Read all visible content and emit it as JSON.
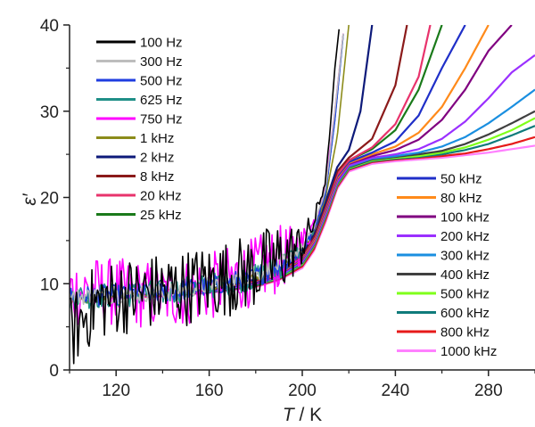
{
  "chart_data": {
    "type": "line",
    "xlabel_italic": "T",
    "xlabel_rest": " / K",
    "ylabel": "ε′",
    "xlim": [
      100,
      300
    ],
    "ylim": [
      0,
      40
    ],
    "xticks": [
      120,
      160,
      200,
      240,
      280
    ],
    "yticks": [
      0,
      10,
      20,
      30,
      40
    ],
    "grid": false,
    "legend_placement": [
      "upper-left",
      "lower-right"
    ],
    "series": [
      {
        "name": "100 Hz",
        "color": "#000000",
        "x": [
          100,
          110,
          120,
          130,
          140,
          150,
          160,
          170,
          180,
          190,
          200,
          205,
          210,
          212,
          214,
          216
        ],
        "y": [
          4.0,
          7.5,
          8.5,
          8.8,
          9.2,
          9.6,
          10.2,
          10.8,
          11.5,
          12.8,
          14.5,
          17.0,
          22.0,
          28.0,
          35.0,
          40.0
        ],
        "noise_amp": 4.5
      },
      {
        "name": "300 Hz",
        "color": "#bdbdbd",
        "x": [
          100,
          120,
          140,
          160,
          180,
          190,
          200,
          205,
          210,
          214,
          218
        ],
        "y": [
          8.5,
          8.7,
          9.0,
          9.8,
          11.0,
          12.2,
          14.2,
          16.5,
          21.0,
          30.0,
          40.0
        ],
        "noise_amp": 1.0
      },
      {
        "name": "500 Hz",
        "color": "#1f3de0",
        "x": [
          100,
          120,
          140,
          160,
          180,
          190,
          200,
          205,
          210,
          214,
          218
        ],
        "y": [
          8.5,
          8.7,
          9.0,
          9.7,
          10.8,
          12.0,
          14.0,
          16.2,
          20.5,
          29.0,
          40.0
        ],
        "noise_amp": 1.2
      },
      {
        "name": "625 Hz",
        "color": "#1f8f87",
        "x": [
          100,
          120,
          140,
          160,
          180,
          190,
          200,
          205,
          210,
          214,
          218
        ],
        "y": [
          8.5,
          8.7,
          9.0,
          9.7,
          10.8,
          12.0,
          14.0,
          16.2,
          20.5,
          29.0,
          40.0
        ],
        "noise_amp": 1.5
      },
      {
        "name": "750 Hz",
        "color": "#ff00ff",
        "x": [
          100,
          110,
          120,
          130,
          140,
          150,
          160,
          170,
          180,
          190,
          200,
          205,
          210,
          214,
          218
        ],
        "y": [
          9.0,
          9.2,
          9.0,
          8.8,
          8.6,
          9.0,
          9.6,
          10.5,
          11.5,
          12.8,
          14.5,
          17.0,
          21.5,
          30.0,
          40.0
        ],
        "noise_amp": 4.0
      },
      {
        "name": "1 kHz",
        "color": "#8c8c1a",
        "x": [
          100,
          120,
          140,
          160,
          180,
          190,
          200,
          205,
          210,
          215,
          220
        ],
        "y": [
          7.8,
          8.5,
          8.9,
          9.6,
          10.7,
          11.8,
          13.8,
          16.0,
          20.0,
          27.0,
          40.0
        ],
        "noise_amp": 0.5
      },
      {
        "name": "2 kHz",
        "color": "#0d1a7a",
        "x": [
          100,
          120,
          140,
          160,
          180,
          190,
          200,
          205,
          210,
          215,
          220,
          225,
          230
        ],
        "y": [
          8.3,
          8.5,
          8.8,
          9.4,
          10.5,
          11.5,
          13.5,
          15.8,
          19.5,
          23.5,
          25.5,
          30.0,
          40.0
        ],
        "noise_amp": 0
      },
      {
        "name": "8 kHz",
        "color": "#8b1a1a",
        "x": [
          100,
          120,
          140,
          160,
          180,
          190,
          200,
          205,
          210,
          215,
          220,
          230,
          240,
          245
        ],
        "y": [
          8.3,
          8.5,
          8.8,
          9.3,
          10.4,
          11.4,
          13.3,
          15.5,
          19.2,
          23.0,
          24.6,
          26.8,
          33.0,
          40.0
        ],
        "noise_amp": 0
      },
      {
        "name": "20 kHz",
        "color": "#e8336c",
        "x": [
          100,
          120,
          140,
          160,
          180,
          190,
          200,
          205,
          210,
          215,
          220,
          230,
          240,
          250,
          255
        ],
        "y": [
          8.3,
          8.5,
          8.8,
          9.3,
          10.3,
          11.3,
          13.1,
          15.3,
          18.9,
          22.6,
          24.3,
          25.8,
          28.5,
          34.0,
          40.0
        ],
        "noise_amp": 0
      },
      {
        "name": "25 kHz",
        "color": "#1a7a1a",
        "x": [
          100,
          120,
          140,
          160,
          180,
          190,
          200,
          205,
          210,
          215,
          220,
          230,
          240,
          250,
          260
        ],
        "y": [
          8.3,
          8.5,
          8.8,
          9.3,
          10.3,
          11.3,
          13.1,
          15.3,
          18.9,
          22.6,
          24.3,
          25.6,
          27.8,
          32.5,
          40.0
        ],
        "noise_amp": 0
      },
      {
        "name": "50 kHz",
        "color": "#1f2fc8",
        "x": [
          100,
          120,
          140,
          160,
          180,
          190,
          200,
          205,
          210,
          215,
          220,
          230,
          240,
          250,
          260,
          270
        ],
        "y": [
          8.3,
          8.5,
          8.8,
          9.2,
          10.2,
          11.2,
          13.0,
          15.2,
          18.7,
          22.4,
          24.1,
          25.2,
          26.5,
          29.5,
          35.0,
          40.0
        ],
        "noise_amp": 0
      },
      {
        "name": "80 kHz",
        "color": "#ff8a1a",
        "x": [
          100,
          120,
          140,
          160,
          180,
          190,
          200,
          205,
          210,
          215,
          220,
          230,
          240,
          250,
          260,
          270,
          280
        ],
        "y": [
          8.3,
          8.5,
          8.8,
          9.2,
          10.2,
          11.1,
          12.9,
          15.0,
          18.5,
          22.2,
          24.0,
          25.0,
          25.9,
          27.5,
          30.5,
          35.0,
          40.0
        ],
        "noise_amp": 0
      },
      {
        "name": "100 kHz",
        "color": "#800080",
        "x": [
          100,
          120,
          140,
          160,
          180,
          190,
          200,
          205,
          210,
          215,
          220,
          230,
          240,
          250,
          260,
          270,
          280,
          290
        ],
        "y": [
          8.3,
          8.5,
          8.8,
          9.2,
          10.1,
          11.0,
          12.8,
          14.9,
          18.4,
          22.1,
          23.9,
          24.8,
          25.5,
          26.7,
          29.0,
          32.5,
          37.0,
          40.0
        ],
        "noise_amp": 0
      },
      {
        "name": "200 kHz",
        "color": "#9b30ff",
        "x": [
          100,
          120,
          140,
          160,
          180,
          190,
          200,
          205,
          210,
          215,
          220,
          230,
          240,
          250,
          260,
          270,
          280,
          290,
          300
        ],
        "y": [
          8.3,
          8.5,
          8.7,
          9.1,
          10.0,
          10.9,
          12.6,
          14.7,
          18.1,
          21.8,
          23.7,
          24.6,
          25.0,
          25.6,
          26.8,
          28.8,
          31.5,
          34.5,
          36.5
        ],
        "noise_amp": 0
      },
      {
        "name": "300 kHz",
        "color": "#1a8fe0",
        "x": [
          100,
          120,
          140,
          160,
          180,
          190,
          200,
          205,
          210,
          215,
          220,
          230,
          240,
          250,
          260,
          270,
          280,
          290,
          300
        ],
        "y": [
          8.3,
          8.5,
          8.7,
          9.1,
          10.0,
          10.8,
          12.5,
          14.6,
          18.0,
          21.7,
          23.6,
          24.5,
          24.8,
          25.2,
          25.9,
          27.0,
          28.6,
          30.5,
          32.5
        ],
        "noise_amp": 0
      },
      {
        "name": "400 kHz",
        "color": "#404040",
        "x": [
          100,
          120,
          140,
          160,
          180,
          190,
          200,
          205,
          210,
          215,
          220,
          230,
          240,
          250,
          260,
          270,
          280,
          290,
          300
        ],
        "y": [
          8.3,
          8.5,
          8.7,
          9.1,
          9.9,
          10.8,
          12.4,
          14.5,
          17.9,
          21.6,
          23.5,
          24.4,
          24.7,
          25.0,
          25.4,
          26.2,
          27.3,
          28.6,
          30.0
        ],
        "noise_amp": 0
      },
      {
        "name": "500 kHz",
        "color": "#7fff1a",
        "x": [
          100,
          120,
          140,
          160,
          180,
          190,
          200,
          205,
          210,
          215,
          220,
          230,
          240,
          250,
          260,
          270,
          280,
          290,
          300
        ],
        "y": [
          8.3,
          8.5,
          8.7,
          9.1,
          9.9,
          10.7,
          12.3,
          14.4,
          17.8,
          21.5,
          23.4,
          24.3,
          24.6,
          24.8,
          25.2,
          25.8,
          26.7,
          27.8,
          29.2
        ],
        "noise_amp": 0
      },
      {
        "name": "600 kHz",
        "color": "#0f7b7b",
        "x": [
          100,
          120,
          140,
          160,
          180,
          190,
          200,
          205,
          210,
          215,
          220,
          230,
          240,
          250,
          260,
          270,
          280,
          290,
          300
        ],
        "y": [
          8.3,
          8.4,
          8.7,
          9.0,
          9.8,
          10.6,
          12.2,
          14.3,
          17.7,
          21.4,
          23.3,
          24.2,
          24.5,
          24.7,
          25.0,
          25.5,
          26.2,
          27.2,
          28.3
        ],
        "noise_amp": 0
      },
      {
        "name": "800 kHz",
        "color": "#e61a1a",
        "x": [
          100,
          120,
          140,
          160,
          180,
          190,
          200,
          205,
          210,
          215,
          220,
          230,
          240,
          250,
          260,
          270,
          280,
          290,
          300
        ],
        "y": [
          8.3,
          8.4,
          8.6,
          9.0,
          9.7,
          10.5,
          12.0,
          14.0,
          17.4,
          21.2,
          23.2,
          24.1,
          24.4,
          24.6,
          24.8,
          25.1,
          25.6,
          26.2,
          27.0
        ],
        "noise_amp": 0
      },
      {
        "name": "1000 kHz",
        "color": "#ff80ff",
        "x": [
          100,
          120,
          140,
          160,
          180,
          190,
          200,
          205,
          210,
          215,
          220,
          230,
          240,
          250,
          260,
          270,
          280,
          290,
          300
        ],
        "y": [
          8.2,
          8.3,
          8.5,
          8.9,
          9.6,
          10.4,
          11.8,
          13.8,
          17.1,
          21.0,
          23.0,
          23.9,
          24.2,
          24.4,
          24.6,
          24.9,
          25.2,
          25.6,
          26.0
        ],
        "noise_amp": 0
      }
    ]
  }
}
